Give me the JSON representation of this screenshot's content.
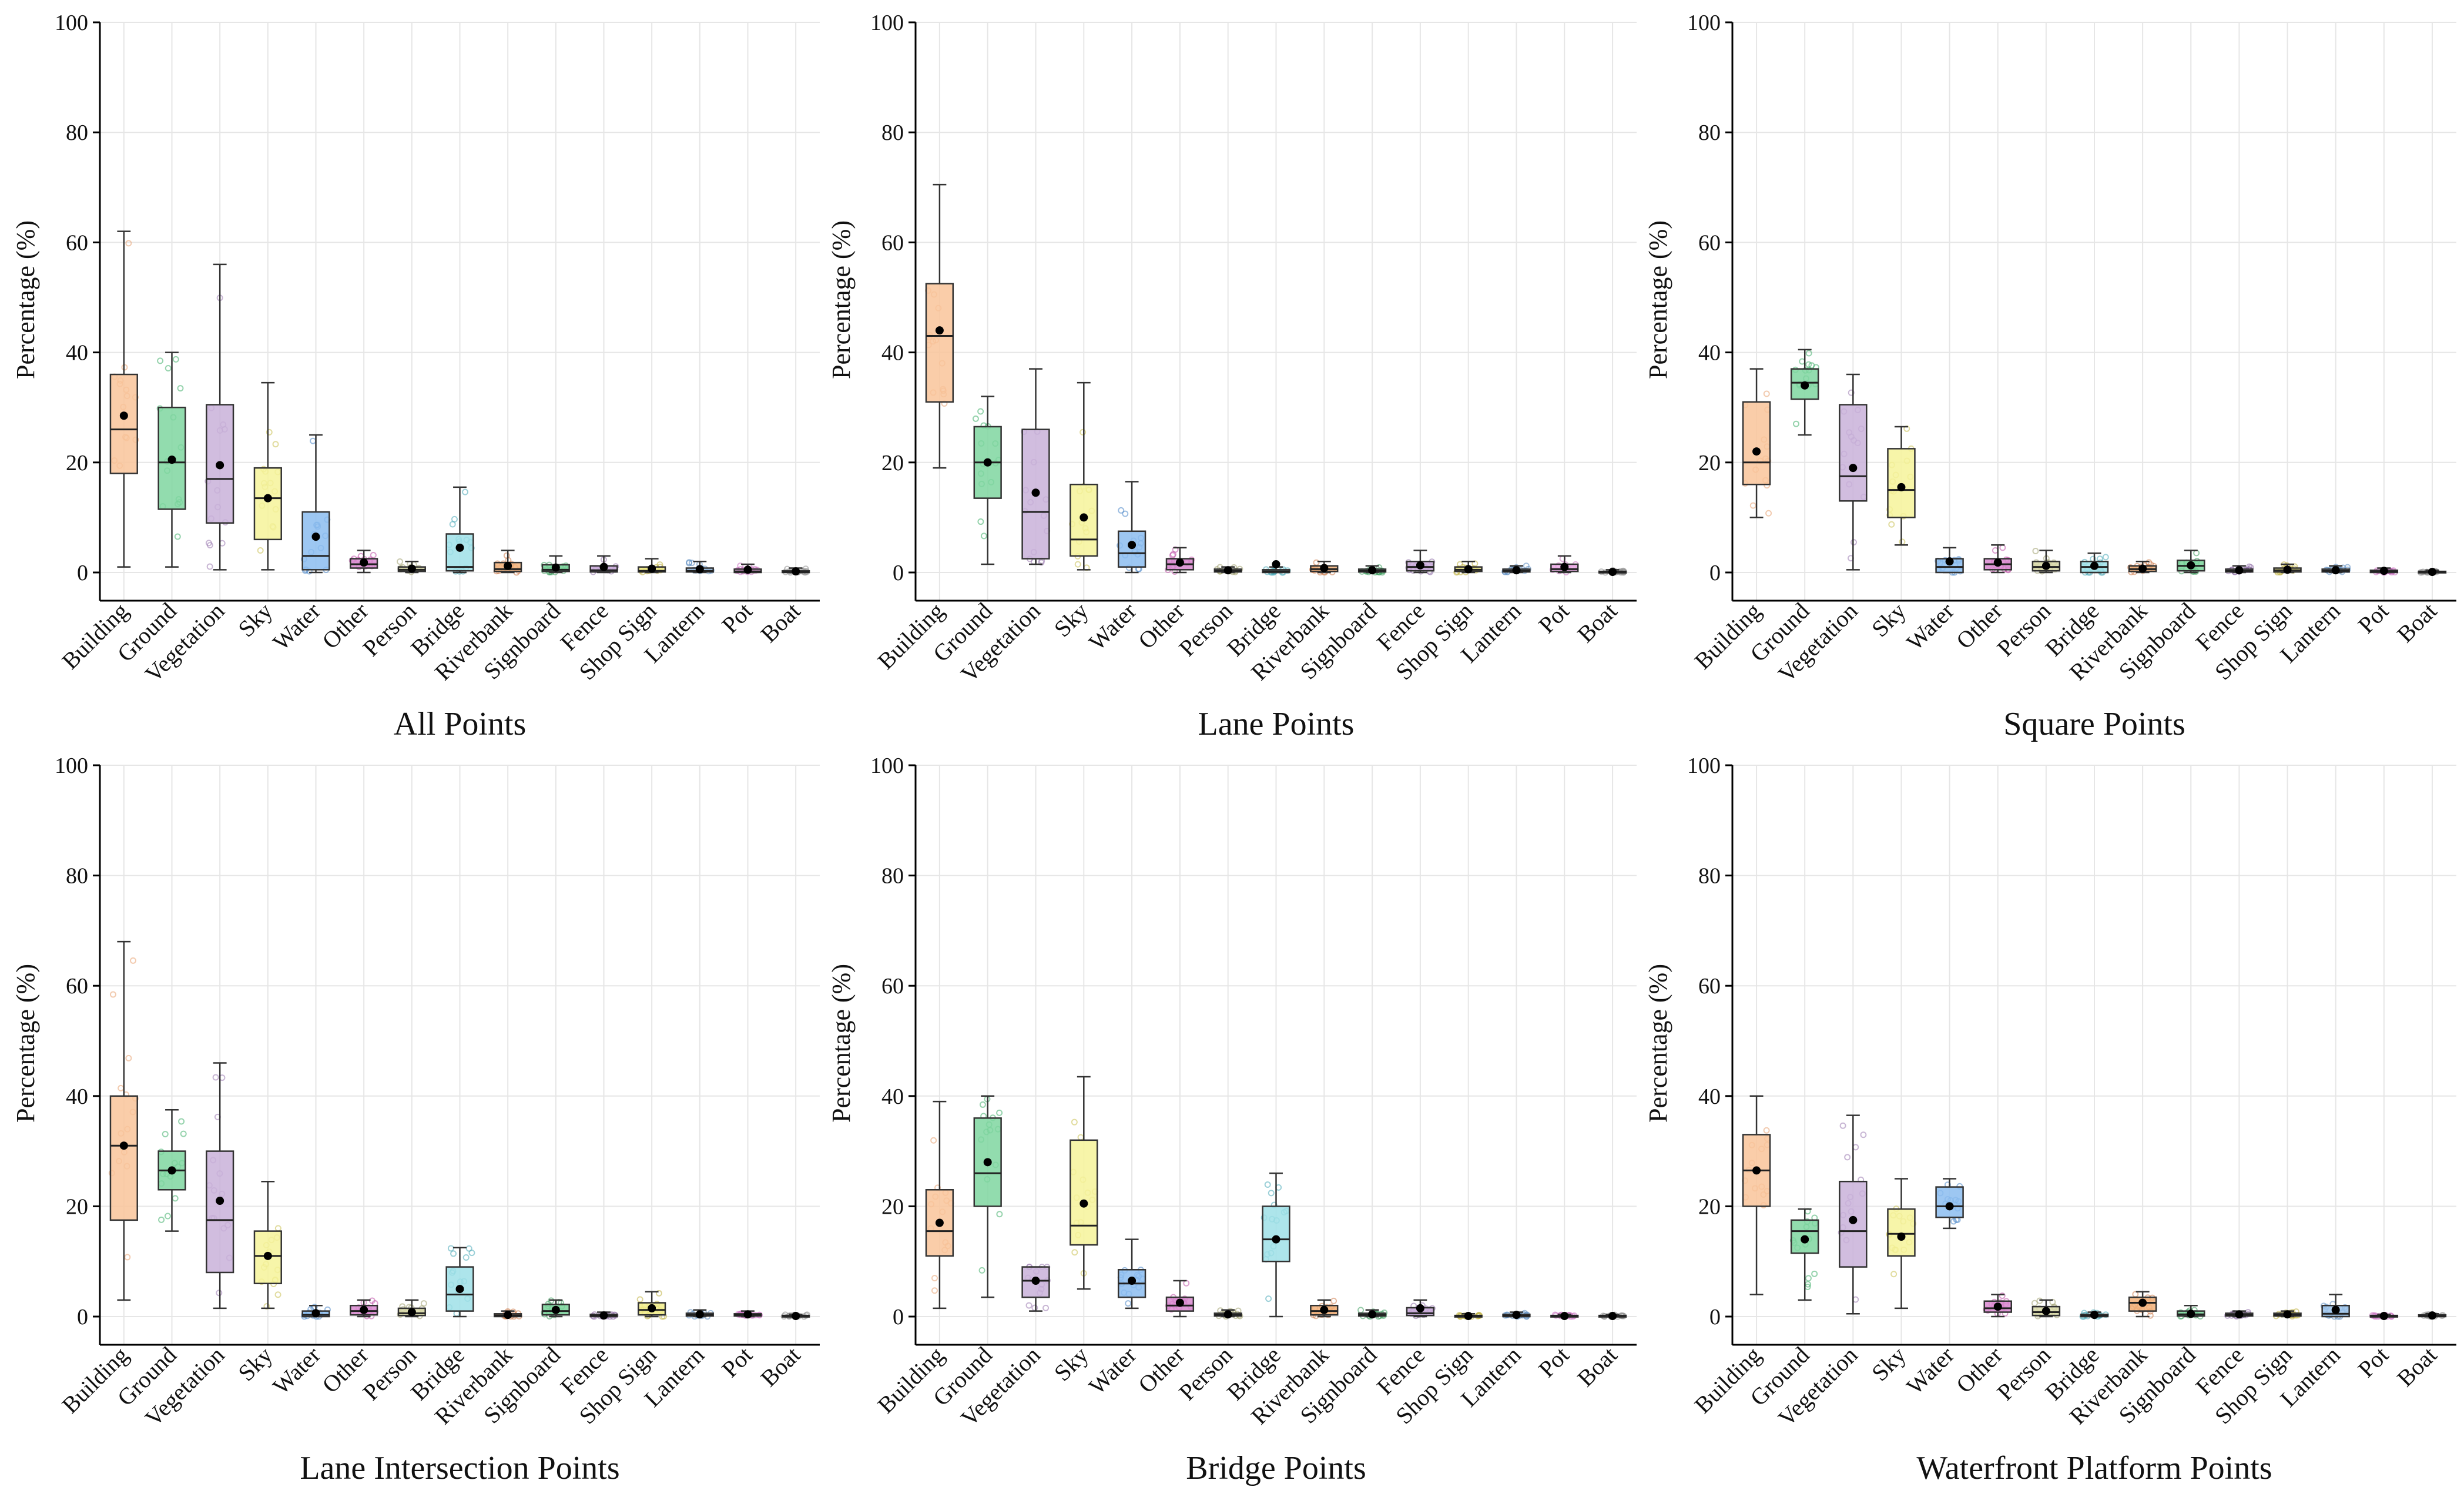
{
  "chart_data": [
    {
      "type": "box",
      "title": "All Points",
      "ylabel": "Percentage (%)",
      "ylim": [
        0,
        100
      ],
      "yticks": [
        0,
        20,
        40,
        60,
        80,
        100
      ],
      "grid": true,
      "categories": [
        "Building",
        "Ground",
        "Vegetation",
        "Sky",
        "Water",
        "Other",
        "Person",
        "Bridge",
        "Riverbank",
        "Signboard",
        "Fence",
        "Shop Sign",
        "Lantern",
        "Pot",
        "Boat"
      ],
      "boxes": [
        {
          "q1": 18,
          "median": 26,
          "q3": 36,
          "whisker_low": 1,
          "whisker_high": 62,
          "mean": 28.5
        },
        {
          "q1": 11.5,
          "median": 20,
          "q3": 30,
          "whisker_low": 1,
          "whisker_high": 40,
          "mean": 20.5
        },
        {
          "q1": 9,
          "median": 17,
          "q3": 30.5,
          "whisker_low": 0.5,
          "whisker_high": 56,
          "mean": 19.5
        },
        {
          "q1": 6,
          "median": 13.5,
          "q3": 19,
          "whisker_low": 0.5,
          "whisker_high": 34.5,
          "mean": 13.5
        },
        {
          "q1": 0.5,
          "median": 3,
          "q3": 11,
          "whisker_low": 0,
          "whisker_high": 25,
          "mean": 6.5
        },
        {
          "q1": 0.8,
          "median": 1.5,
          "q3": 2.5,
          "whisker_low": 0,
          "whisker_high": 4,
          "mean": 1.8
        },
        {
          "q1": 0.2,
          "median": 0.5,
          "q3": 1,
          "whisker_low": 0,
          "whisker_high": 2,
          "mean": 0.7
        },
        {
          "q1": 0.3,
          "median": 1,
          "q3": 7,
          "whisker_low": 0,
          "whisker_high": 15.5,
          "mean": 4.5
        },
        {
          "q1": 0.2,
          "median": 0.6,
          "q3": 1.8,
          "whisker_low": 0,
          "whisker_high": 4,
          "mean": 1.2
        },
        {
          "q1": 0.2,
          "median": 0.5,
          "q3": 1.4,
          "whisker_low": 0,
          "whisker_high": 3,
          "mean": 0.9
        },
        {
          "q1": 0.1,
          "median": 0.4,
          "q3": 1.2,
          "whisker_low": 0,
          "whisker_high": 3,
          "mean": 1
        },
        {
          "q1": 0.1,
          "median": 0.3,
          "q3": 1,
          "whisker_low": 0,
          "whisker_high": 2.5,
          "mean": 0.7
        },
        {
          "q1": 0.1,
          "median": 0.3,
          "q3": 0.8,
          "whisker_low": 0,
          "whisker_high": 2,
          "mean": 0.6
        },
        {
          "q1": 0,
          "median": 0.2,
          "q3": 0.6,
          "whisker_low": 0,
          "whisker_high": 1.5,
          "mean": 0.5
        },
        {
          "q1": 0,
          "median": 0.1,
          "q3": 0.3,
          "whisker_low": 0,
          "whisker_high": 0.8,
          "mean": 0.2
        }
      ]
    },
    {
      "type": "box",
      "title": "Lane Points",
      "ylabel": "Percentage (%)",
      "ylim": [
        0,
        100
      ],
      "yticks": [
        0,
        20,
        40,
        60,
        80,
        100
      ],
      "grid": true,
      "categories": [
        "Building",
        "Ground",
        "Vegetation",
        "Sky",
        "Water",
        "Other",
        "Person",
        "Bridge",
        "Riverbank",
        "Signboard",
        "Fence",
        "Shop Sign",
        "Lantern",
        "Pot",
        "Boat"
      ],
      "boxes": [
        {
          "q1": 31,
          "median": 43,
          "q3": 52.5,
          "whisker_low": 19,
          "whisker_high": 70.5,
          "mean": 44
        },
        {
          "q1": 13.5,
          "median": 20,
          "q3": 26.5,
          "whisker_low": 1.5,
          "whisker_high": 32,
          "mean": 20
        },
        {
          "q1": 2.5,
          "median": 11,
          "q3": 26,
          "whisker_low": 1.5,
          "whisker_high": 37,
          "mean": 14.5
        },
        {
          "q1": 3,
          "median": 6,
          "q3": 16,
          "whisker_low": 0.5,
          "whisker_high": 34.5,
          "mean": 10
        },
        {
          "q1": 1,
          "median": 3.5,
          "q3": 7.5,
          "whisker_low": 0,
          "whisker_high": 16.5,
          "mean": 5
        },
        {
          "q1": 0.5,
          "median": 1.5,
          "q3": 2.5,
          "whisker_low": 0,
          "whisker_high": 4.5,
          "mean": 1.8
        },
        {
          "q1": 0.1,
          "median": 0.3,
          "q3": 0.6,
          "whisker_low": 0,
          "whisker_high": 1,
          "mean": 0.4
        },
        {
          "q1": 0,
          "median": 0.2,
          "q3": 0.5,
          "whisker_low": 0,
          "whisker_high": 1,
          "mean": 1.5
        },
        {
          "q1": 0.2,
          "median": 0.6,
          "q3": 1.2,
          "whisker_low": 0,
          "whisker_high": 2,
          "mean": 0.8
        },
        {
          "q1": 0.1,
          "median": 0.3,
          "q3": 0.6,
          "whisker_low": 0,
          "whisker_high": 1.2,
          "mean": 0.4
        },
        {
          "q1": 0.3,
          "median": 1,
          "q3": 2,
          "whisker_low": 0,
          "whisker_high": 4,
          "mean": 1.3
        },
        {
          "q1": 0.2,
          "median": 0.5,
          "q3": 1,
          "whisker_low": 0,
          "whisker_high": 2,
          "mean": 0.6
        },
        {
          "q1": 0.1,
          "median": 0.3,
          "q3": 0.6,
          "whisker_low": 0,
          "whisker_high": 1.2,
          "mean": 0.4
        },
        {
          "q1": 0.2,
          "median": 0.6,
          "q3": 1.5,
          "whisker_low": 0,
          "whisker_high": 3,
          "mean": 1
        },
        {
          "q1": 0,
          "median": 0.1,
          "q3": 0.2,
          "whisker_low": 0,
          "whisker_high": 0.5,
          "mean": 0.1
        }
      ]
    },
    {
      "type": "box",
      "title": "Square Points",
      "ylabel": "Percentage (%)",
      "ylim": [
        0,
        100
      ],
      "yticks": [
        0,
        20,
        40,
        60,
        80,
        100
      ],
      "grid": true,
      "categories": [
        "Building",
        "Ground",
        "Vegetation",
        "Sky",
        "Water",
        "Other",
        "Person",
        "Bridge",
        "Riverbank",
        "Signboard",
        "Fence",
        "Shop Sign",
        "Lantern",
        "Pot",
        "Boat"
      ],
      "boxes": [
        {
          "q1": 16,
          "median": 20,
          "q3": 31,
          "whisker_low": 10,
          "whisker_high": 37,
          "mean": 22
        },
        {
          "q1": 31.5,
          "median": 34.5,
          "q3": 37,
          "whisker_low": 25,
          "whisker_high": 40.5,
          "mean": 34
        },
        {
          "q1": 13,
          "median": 17.5,
          "q3": 30.5,
          "whisker_low": 0.5,
          "whisker_high": 36,
          "mean": 19
        },
        {
          "q1": 10,
          "median": 15,
          "q3": 22.5,
          "whisker_low": 5,
          "whisker_high": 26.5,
          "mean": 15.5
        },
        {
          "q1": 0,
          "median": 1,
          "q3": 2.5,
          "whisker_low": 0,
          "whisker_high": 4.5,
          "mean": 2
        },
        {
          "q1": 0.5,
          "median": 1.5,
          "q3": 2.5,
          "whisker_low": 0,
          "whisker_high": 5,
          "mean": 1.8
        },
        {
          "q1": 0.3,
          "median": 1,
          "q3": 2,
          "whisker_low": 0,
          "whisker_high": 4,
          "mean": 1.2
        },
        {
          "q1": 0,
          "median": 1,
          "q3": 2,
          "whisker_low": 0,
          "whisker_high": 3.5,
          "mean": 1.2
        },
        {
          "q1": 0.2,
          "median": 0.6,
          "q3": 1.2,
          "whisker_low": 0,
          "whisker_high": 2,
          "mean": 0.7
        },
        {
          "q1": 0.3,
          "median": 1.2,
          "q3": 2.2,
          "whisker_low": 0,
          "whisker_high": 4,
          "mean": 1.3
        },
        {
          "q1": 0.1,
          "median": 0.3,
          "q3": 0.6,
          "whisker_low": 0,
          "whisker_high": 1.2,
          "mean": 0.4
        },
        {
          "q1": 0.1,
          "median": 0.4,
          "q3": 0.8,
          "whisker_low": 0,
          "whisker_high": 1.5,
          "mean": 0.5
        },
        {
          "q1": 0.1,
          "median": 0.3,
          "q3": 0.6,
          "whisker_low": 0,
          "whisker_high": 1.2,
          "mean": 0.4
        },
        {
          "q1": 0,
          "median": 0.2,
          "q3": 0.4,
          "whisker_low": 0,
          "whisker_high": 0.8,
          "mean": 0.3
        },
        {
          "q1": 0,
          "median": 0.1,
          "q3": 0.2,
          "whisker_low": 0,
          "whisker_high": 0.4,
          "mean": 0.1
        }
      ]
    },
    {
      "type": "box",
      "title": "Lane Intersection Points",
      "ylabel": "Percentage (%)",
      "ylim": [
        0,
        100
      ],
      "yticks": [
        0,
        20,
        40,
        60,
        80,
        100
      ],
      "grid": true,
      "categories": [
        "Building",
        "Ground",
        "Vegetation",
        "Sky",
        "Water",
        "Other",
        "Person",
        "Bridge",
        "Riverbank",
        "Signboard",
        "Fence",
        "Shop Sign",
        "Lantern",
        "Pot",
        "Boat"
      ],
      "boxes": [
        {
          "q1": 17.5,
          "median": 31,
          "q3": 40,
          "whisker_low": 3,
          "whisker_high": 68,
          "mean": 31
        },
        {
          "q1": 23,
          "median": 26.5,
          "q3": 30,
          "whisker_low": 15.5,
          "whisker_high": 37.5,
          "mean": 26.5
        },
        {
          "q1": 8,
          "median": 17.5,
          "q3": 30,
          "whisker_low": 1.5,
          "whisker_high": 46,
          "mean": 21
        },
        {
          "q1": 6,
          "median": 11,
          "q3": 15.5,
          "whisker_low": 1.5,
          "whisker_high": 24.5,
          "mean": 11
        },
        {
          "q1": 0,
          "median": 0.3,
          "q3": 1,
          "whisker_low": 0,
          "whisker_high": 2,
          "mean": 0.6
        },
        {
          "q1": 0.3,
          "median": 1,
          "q3": 2,
          "whisker_low": 0,
          "whisker_high": 3,
          "mean": 1.2
        },
        {
          "q1": 0.2,
          "median": 0.6,
          "q3": 1.5,
          "whisker_low": 0,
          "whisker_high": 3,
          "mean": 0.8
        },
        {
          "q1": 1,
          "median": 4,
          "q3": 9,
          "whisker_low": 0,
          "whisker_high": 12.5,
          "mean": 5
        },
        {
          "q1": 0,
          "median": 0.2,
          "q3": 0.5,
          "whisker_low": 0,
          "whisker_high": 1,
          "mean": 0.3
        },
        {
          "q1": 0.3,
          "median": 1,
          "q3": 2.2,
          "whisker_low": 0,
          "whisker_high": 3,
          "mean": 1.2
        },
        {
          "q1": 0,
          "median": 0.2,
          "q3": 0.4,
          "whisker_low": 0,
          "whisker_high": 0.8,
          "mean": 0.2
        },
        {
          "q1": 0.3,
          "median": 1.2,
          "q3": 2.5,
          "whisker_low": 0,
          "whisker_high": 4.5,
          "mean": 1.5
        },
        {
          "q1": 0.1,
          "median": 0.3,
          "q3": 0.6,
          "whisker_low": 0,
          "whisker_high": 1.2,
          "mean": 0.4
        },
        {
          "q1": 0.1,
          "median": 0.3,
          "q3": 0.5,
          "whisker_low": 0,
          "whisker_high": 1,
          "mean": 0.4
        },
        {
          "q1": 0,
          "median": 0.1,
          "q3": 0.2,
          "whisker_low": 0,
          "whisker_high": 0.4,
          "mean": 0.1
        }
      ]
    },
    {
      "type": "box",
      "title": "Bridge Points",
      "ylabel": "Percentage (%)",
      "ylim": [
        0,
        100
      ],
      "yticks": [
        0,
        20,
        40,
        60,
        80,
        100
      ],
      "grid": true,
      "categories": [
        "Building",
        "Ground",
        "Vegetation",
        "Sky",
        "Water",
        "Other",
        "Person",
        "Bridge",
        "Riverbank",
        "Signboard",
        "Fence",
        "Shop Sign",
        "Lantern",
        "Pot",
        "Boat"
      ],
      "boxes": [
        {
          "q1": 11,
          "median": 15.5,
          "q3": 23,
          "whisker_low": 1.5,
          "whisker_high": 39,
          "mean": 17
        },
        {
          "q1": 20,
          "median": 26,
          "q3": 36,
          "whisker_low": 3.5,
          "whisker_high": 40,
          "mean": 28
        },
        {
          "q1": 3.5,
          "median": 6.5,
          "q3": 9,
          "whisker_low": 1,
          "whisker_high": 9,
          "mean": 6.5
        },
        {
          "q1": 13,
          "median": 16.5,
          "q3": 32,
          "whisker_low": 5,
          "whisker_high": 43.5,
          "mean": 20.5
        },
        {
          "q1": 3.5,
          "median": 6,
          "q3": 8.5,
          "whisker_low": 1.5,
          "whisker_high": 14,
          "mean": 6.5
        },
        {
          "q1": 1,
          "median": 2,
          "q3": 3.5,
          "whisker_low": 0,
          "whisker_high": 6.5,
          "mean": 2.5
        },
        {
          "q1": 0.1,
          "median": 0.3,
          "q3": 0.6,
          "whisker_low": 0,
          "whisker_high": 1.2,
          "mean": 0.4
        },
        {
          "q1": 10,
          "median": 14,
          "q3": 20,
          "whisker_low": 0,
          "whisker_high": 26,
          "mean": 14
        },
        {
          "q1": 0.3,
          "median": 1,
          "q3": 2,
          "whisker_low": 0,
          "whisker_high": 3,
          "mean": 1.2
        },
        {
          "q1": 0.1,
          "median": 0.3,
          "q3": 0.6,
          "whisker_low": 0,
          "whisker_high": 1.2,
          "mean": 0.4
        },
        {
          "q1": 0.2,
          "median": 0.6,
          "q3": 1.6,
          "whisker_low": 0,
          "whisker_high": 3,
          "mean": 1.5
        },
        {
          "q1": 0,
          "median": 0.1,
          "q3": 0.2,
          "whisker_low": 0,
          "whisker_high": 0.5,
          "mean": 0.1
        },
        {
          "q1": 0,
          "median": 0.2,
          "q3": 0.4,
          "whisker_low": 0,
          "whisker_high": 0.8,
          "mean": 0.3
        },
        {
          "q1": 0,
          "median": 0.1,
          "q3": 0.2,
          "whisker_low": 0,
          "whisker_high": 0.4,
          "mean": 0.1
        },
        {
          "q1": 0,
          "median": 0.1,
          "q3": 0.2,
          "whisker_low": 0,
          "whisker_high": 0.4,
          "mean": 0.1
        }
      ]
    },
    {
      "type": "box",
      "title": "Waterfront Platform Points",
      "ylabel": "Percentage (%)",
      "ylim": [
        0,
        100
      ],
      "yticks": [
        0,
        20,
        40,
        60,
        80,
        100
      ],
      "grid": true,
      "categories": [
        "Building",
        "Ground",
        "Vegetation",
        "Sky",
        "Water",
        "Other",
        "Person",
        "Bridge",
        "Riverbank",
        "Signboard",
        "Fence",
        "Shop Sign",
        "Lantern",
        "Pot",
        "Boat"
      ],
      "boxes": [
        {
          "q1": 20,
          "median": 26.5,
          "q3": 33,
          "whisker_low": 4,
          "whisker_high": 40,
          "mean": 26.5
        },
        {
          "q1": 11.5,
          "median": 15.5,
          "q3": 17.5,
          "whisker_low": 3,
          "whisker_high": 19.5,
          "mean": 14
        },
        {
          "q1": 9,
          "median": 15.5,
          "q3": 24.5,
          "whisker_low": 0.5,
          "whisker_high": 36.5,
          "mean": 17.5
        },
        {
          "q1": 11,
          "median": 15,
          "q3": 19.5,
          "whisker_low": 1.5,
          "whisker_high": 25,
          "mean": 14.5
        },
        {
          "q1": 18,
          "median": 20,
          "q3": 23.5,
          "whisker_low": 16,
          "whisker_high": 25,
          "mean": 20
        },
        {
          "q1": 0.8,
          "median": 1.5,
          "q3": 2.8,
          "whisker_low": 0,
          "whisker_high": 4,
          "mean": 1.8
        },
        {
          "q1": 0.2,
          "median": 0.8,
          "q3": 1.8,
          "whisker_low": 0,
          "whisker_high": 3,
          "mean": 1
        },
        {
          "q1": 0,
          "median": 0.2,
          "q3": 0.4,
          "whisker_low": 0,
          "whisker_high": 0.8,
          "mean": 0.3
        },
        {
          "q1": 1,
          "median": 2.5,
          "q3": 3.5,
          "whisker_low": 0,
          "whisker_high": 4.5,
          "mean": 2.5
        },
        {
          "q1": 0.1,
          "median": 0.4,
          "q3": 1,
          "whisker_low": 0,
          "whisker_high": 2,
          "mean": 0.5
        },
        {
          "q1": 0.1,
          "median": 0.3,
          "q3": 0.6,
          "whisker_low": 0,
          "whisker_high": 1,
          "mean": 0.4
        },
        {
          "q1": 0.1,
          "median": 0.3,
          "q3": 0.6,
          "whisker_low": 0,
          "whisker_high": 1,
          "mean": 0.4
        },
        {
          "q1": 0,
          "median": 0.5,
          "q3": 2,
          "whisker_low": 0,
          "whisker_high": 4,
          "mean": 1.2
        },
        {
          "q1": 0,
          "median": 0.1,
          "q3": 0.2,
          "whisker_low": 0,
          "whisker_high": 0.4,
          "mean": 0.1
        },
        {
          "q1": 0,
          "median": 0.1,
          "q3": 0.3,
          "whisker_low": 0,
          "whisker_high": 0.5,
          "mean": 0.2
        }
      ]
    }
  ],
  "colors": {
    "fills": [
      "#f9c49a",
      "#7fd6a0",
      "#c9b1d9",
      "#f6f39a",
      "#8cbdf0",
      "#d98ad0",
      "#d9d9a8",
      "#9fe0e8",
      "#f2b27a",
      "#79d49a",
      "#c8a9d8",
      "#f2ed8a",
      "#9cc3ea",
      "#ecaee6",
      "#cfcfcf"
    ],
    "points": [
      "#e8a070",
      "#3fae6a",
      "#9a7ab0",
      "#c8c050",
      "#4a86c8",
      "#c050a8",
      "#a0a070",
      "#4aaab8",
      "#d08050",
      "#40a060",
      "#9070a8",
      "#c0b040",
      "#5a8ac0",
      "#c870c0",
      "#909090"
    ],
    "grid": "#e6e6e6",
    "axis": "#000000",
    "mean_marker": "#000000"
  }
}
